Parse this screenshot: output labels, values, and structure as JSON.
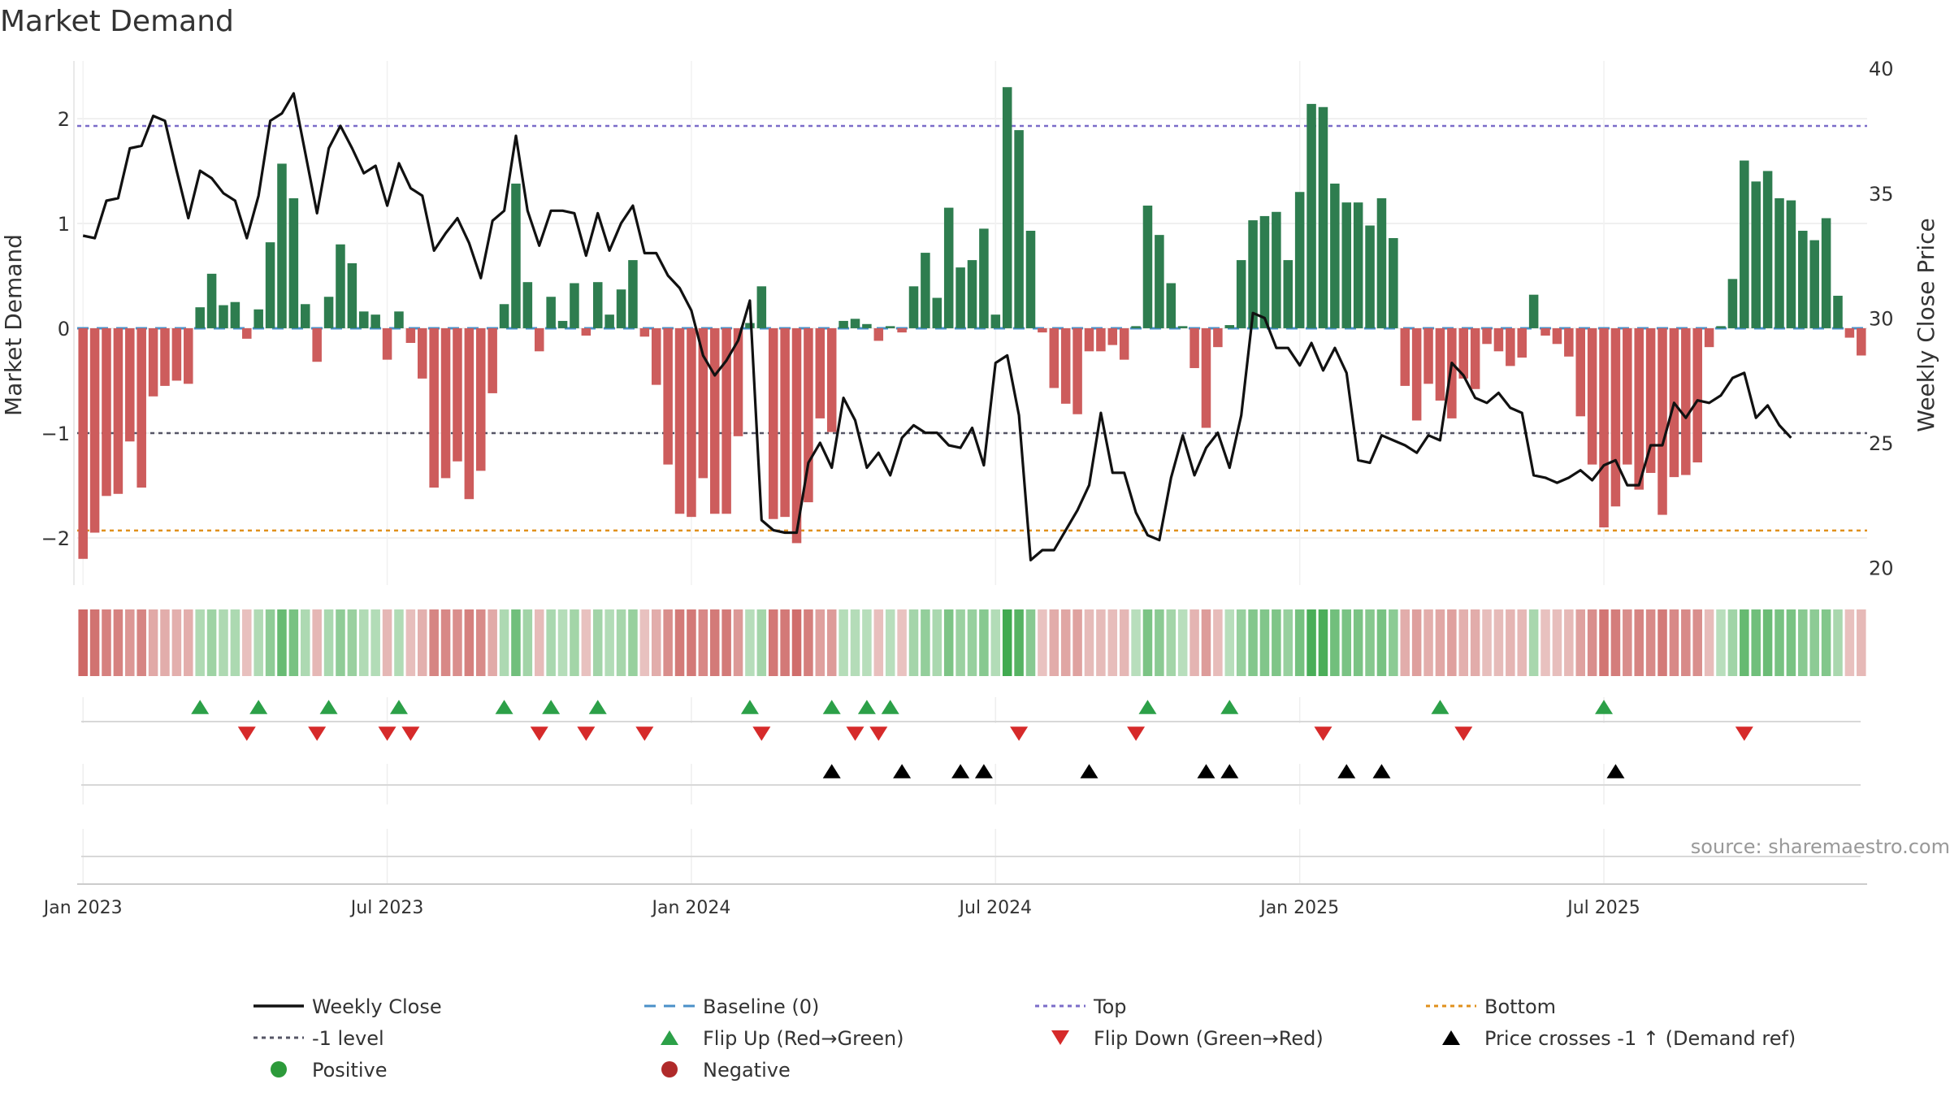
{
  "chart_data": {
    "type": "bar+line",
    "title": "Market Demand",
    "ylabel_left": "Market Demand",
    "ylabel_right": "Weekly Close Price",
    "ylim_left": [
      -2.45,
      2.55
    ],
    "ylim_right": [
      19.3,
      40.3
    ],
    "yticks_left": [
      {
        "value": 2,
        "label": "2"
      },
      {
        "value": 1,
        "label": "1"
      },
      {
        "value": 0,
        "label": "0"
      },
      {
        "value": -1,
        "label": "−1"
      },
      {
        "value": -2,
        "label": "−2"
      }
    ],
    "yticks_right": [
      {
        "value": 40,
        "label": "40"
      },
      {
        "value": 35,
        "label": "35"
      },
      {
        "value": 30,
        "label": "30"
      },
      {
        "value": 25,
        "label": "25"
      },
      {
        "value": 20,
        "label": "20"
      }
    ],
    "xticks": [
      {
        "week": 1,
        "label": "Jan 2023"
      },
      {
        "week": 27,
        "label": "Jul 2023"
      },
      {
        "week": 53,
        "label": "Jan 2024"
      },
      {
        "week": 79,
        "label": "Jul 2024"
      },
      {
        "week": 105,
        "label": "Jan 2025"
      },
      {
        "week": 131,
        "label": "Jul 2025"
      }
    ],
    "reference_lines": {
      "top": 1.93,
      "minus1": -1.0,
      "bottom": -1.93,
      "baseline": 0
    },
    "demand": [
      -2.2,
      -1.95,
      -1.6,
      -1.58,
      -1.08,
      -1.52,
      -0.65,
      -0.55,
      -0.5,
      -0.53,
      0.2,
      0.52,
      0.22,
      0.25,
      -0.1,
      0.18,
      0.82,
      1.57,
      1.24,
      0.23,
      -0.32,
      0.3,
      0.8,
      0.62,
      0.16,
      0.13,
      -0.3,
      0.16,
      -0.14,
      -0.48,
      -1.52,
      -1.43,
      -1.27,
      -1.63,
      -1.36,
      -0.62,
      0.23,
      1.38,
      0.44,
      -0.22,
      0.3,
      0.07,
      0.43,
      -0.07,
      0.44,
      0.13,
      0.37,
      0.65,
      -0.08,
      -0.54,
      -1.3,
      -1.77,
      -1.8,
      -1.43,
      -1.77,
      -1.77,
      -1.03,
      0.05,
      0.4,
      -1.82,
      -1.8,
      -2.05,
      -1.66,
      -0.86,
      -0.99,
      0.07,
      0.09,
      0.04,
      -0.12,
      0.02,
      -0.04,
      0.4,
      0.72,
      0.29,
      1.15,
      0.58,
      0.65,
      0.95,
      0.13,
      2.3,
      1.89,
      0.93,
      -0.04,
      -0.57,
      -0.72,
      -0.82,
      -0.22,
      -0.22,
      -0.16,
      -0.3,
      0.02,
      1.17,
      0.89,
      0.43,
      0.02,
      -0.38,
      -0.95,
      -0.18,
      0.03,
      0.65,
      1.03,
      1.07,
      1.11,
      0.65,
      1.3,
      2.14,
      2.11,
      1.38,
      1.2,
      1.2,
      0.98,
      1.24,
      0.86,
      -0.55,
      -0.88,
      -0.53,
      -0.69,
      -0.86,
      -0.48,
      -0.58,
      -0.15,
      -0.22,
      -0.36,
      -0.28,
      0.32,
      -0.07,
      -0.15,
      -0.27,
      -0.84,
      -1.3,
      -1.9,
      -1.7,
      -1.3,
      -1.54,
      -1.38,
      -1.78,
      -1.42,
      -1.4,
      -1.28,
      -0.18,
      0.02,
      0.47,
      1.6,
      1.4,
      1.5,
      1.24,
      1.22,
      0.93,
      0.84,
      1.05,
      0.31,
      -0.09,
      -0.26
    ],
    "heat_strip": "one colored cell per week; hue follows sign of demand, intensity follows magnitude",
    "weekly_close": [
      33.3,
      33.2,
      34.7,
      34.8,
      36.8,
      36.9,
      38.1,
      37.9,
      35.9,
      34.0,
      35.9,
      35.6,
      35.0,
      34.7,
      33.2,
      34.9,
      37.9,
      38.2,
      39.0,
      36.6,
      34.2,
      36.8,
      37.7,
      36.8,
      35.8,
      36.1,
      34.5,
      36.2,
      35.2,
      34.9,
      32.7,
      33.4,
      34.0,
      33.0,
      31.6,
      33.9,
      34.3,
      37.3,
      34.3,
      32.9,
      34.3,
      34.3,
      34.2,
      32.5,
      34.2,
      32.7,
      33.8,
      34.5,
      32.6,
      32.6,
      31.7,
      31.2,
      30.3,
      28.5,
      27.7,
      28.3,
      29.1,
      30.7,
      21.9,
      21.5,
      21.4,
      21.4,
      24.2,
      25.0,
      24.0,
      26.8,
      25.9,
      24.0,
      24.6,
      23.7,
      25.2,
      25.7,
      25.4,
      25.4,
      24.9,
      24.8,
      25.6,
      24.1,
      28.2,
      28.5,
      26.1,
      20.3,
      20.7,
      20.7,
      21.5,
      22.3,
      23.3,
      26.2,
      23.8,
      23.8,
      22.2,
      21.3,
      21.1,
      23.6,
      25.3,
      23.7,
      24.8,
      25.4,
      24.0,
      26.1,
      30.2,
      30.0,
      28.8,
      28.8,
      28.1,
      29.0,
      27.9,
      28.8,
      27.8,
      24.3,
      24.2,
      25.3,
      25.1,
      24.9,
      24.6,
      25.3,
      25.1,
      28.2,
      27.7,
      26.8,
      26.6,
      27.0,
      26.4,
      26.2,
      23.7,
      23.6,
      23.4,
      23.6,
      23.9,
      23.5,
      24.1,
      24.3,
      23.3,
      23.3,
      24.9,
      24.9,
      26.6,
      26.0,
      26.7,
      26.6,
      26.9,
      27.6,
      27.8,
      26.0,
      26.5,
      25.7,
      25.2
    ],
    "flip_up_weeks": [
      11,
      16,
      22,
      28,
      37,
      41,
      45,
      58,
      65,
      68,
      70,
      92,
      99,
      117,
      131
    ],
    "flip_down_weeks": [
      15,
      21,
      27,
      29,
      40,
      44,
      49,
      59,
      67,
      69,
      81,
      91,
      107,
      119,
      143
    ],
    "cross_weeks": [
      65,
      71,
      76,
      78,
      87,
      97,
      99,
      109,
      112,
      132
    ],
    "legend": [
      {
        "label": "Weekly Close",
        "kind": "line",
        "color": "#111111"
      },
      {
        "label": "Baseline (0)",
        "kind": "dash",
        "color": "#4a90c8"
      },
      {
        "label": "Top",
        "kind": "dotted",
        "color": "#7b6cc9"
      },
      {
        "label": "Bottom",
        "kind": "dotted",
        "color": "#e0901c"
      },
      {
        "label": "-1 level",
        "kind": "dotted",
        "color": "#555566"
      },
      {
        "label": "Flip Up (Red→Green)",
        "kind": "tri-up",
        "color": "#2ca048"
      },
      {
        "label": "Flip Down (Green→Red)",
        "kind": "tri-down",
        "color": "#d62a2a"
      },
      {
        "label": "Price crosses -1 ↑ (Demand ref)",
        "kind": "tri-up",
        "color": "#000000"
      },
      {
        "label": "Positive",
        "kind": "dot",
        "color": "#2c9a3a"
      },
      {
        "label": "Negative",
        "kind": "dot",
        "color": "#b02a2a"
      }
    ],
    "source": "source: sharemaestro.com"
  },
  "colors": {
    "positive_bar": "#2e7d4f",
    "negative_bar": "#cd5c5c",
    "line": "#111111"
  }
}
